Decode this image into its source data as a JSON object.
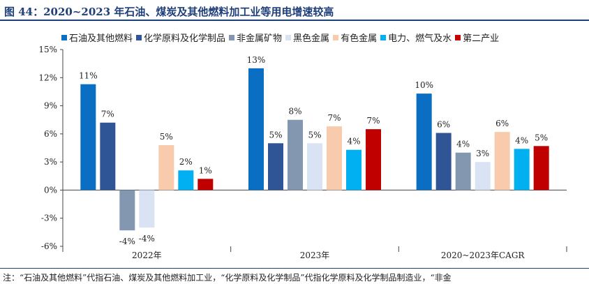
{
  "title": "图 44：2020~2023 年石油、煤炭及其他燃料加工业等用电增速较高",
  "note": "注：“石油及其他燃料”代指石油、煤炭及其他燃料加工业，“化学原料及化学制品”代指化学原料及化学制品制造业，“非金",
  "chart_data": {
    "type": "bar",
    "categories": [
      "2022年",
      "2023年",
      "2020~2023年CAGR"
    ],
    "series": [
      {
        "name": "石油及其他燃料",
        "color": "#0a6fc2",
        "values": [
          11.3,
          13.0,
          10.3
        ],
        "labels": [
          "11%",
          "13%",
          "10%"
        ]
      },
      {
        "name": "化学原料及化学制品",
        "color": "#2f5597",
        "values": [
          7.2,
          5.0,
          6.1
        ],
        "labels": [
          "7%",
          "5%",
          "6%"
        ]
      },
      {
        "name": "非金属矿物",
        "color": "#8497b0",
        "values": [
          -4.3,
          7.5,
          4.0
        ],
        "labels": [
          "-4%",
          "8%",
          "4%"
        ]
      },
      {
        "name": "黑色金属",
        "color": "#dae3f3",
        "values": [
          -4.0,
          5.0,
          3.0
        ],
        "labels": [
          "-4%",
          "5%",
          "3%"
        ]
      },
      {
        "name": "有色金属",
        "color": "#f8cbad",
        "values": [
          4.8,
          6.8,
          6.2
        ],
        "labels": [
          "5%",
          "7%",
          "6%"
        ]
      },
      {
        "name": "电力、燃气及水",
        "color": "#00b0f0",
        "values": [
          2.1,
          4.3,
          4.4
        ],
        "labels": [
          "2%",
          "4%",
          "4%"
        ]
      },
      {
        "name": "第二产业",
        "color": "#c00000",
        "values": [
          1.2,
          6.5,
          4.7
        ],
        "labels": [
          "1%",
          "7%",
          "5%"
        ]
      }
    ],
    "yticks": [
      "15%",
      "12%",
      "9%",
      "6%",
      "3%",
      "0%",
      "-3%",
      "-6%"
    ],
    "ylim": [
      -6,
      15
    ],
    "legend_position": "top",
    "grid": false
  }
}
